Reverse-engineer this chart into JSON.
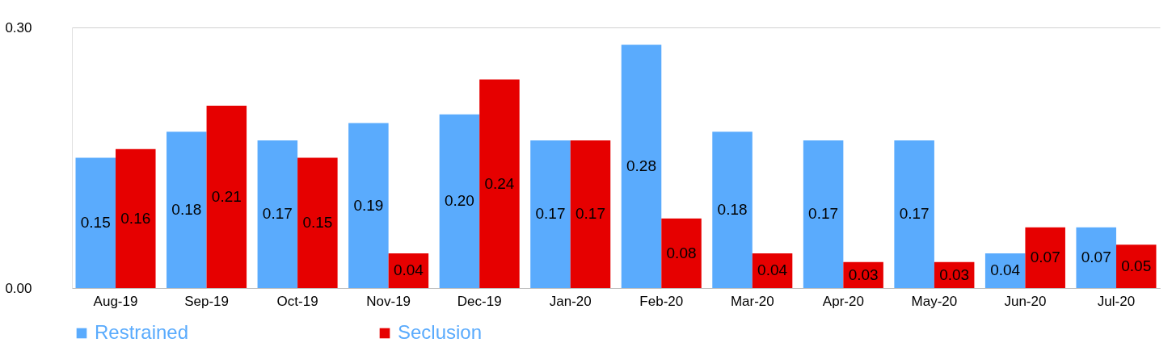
{
  "chart_data": {
    "type": "bar",
    "categories": [
      "Aug-19",
      "Sep-19",
      "Oct-19",
      "Nov-19",
      "Dec-19",
      "Jan-20",
      "Feb-20",
      "Mar-20",
      "Apr-20",
      "May-20",
      "Jun-20",
      "Jul-20"
    ],
    "series": [
      {
        "name": "Restrained",
        "color": "#5aabfd",
        "values": [
          0.15,
          0.18,
          0.17,
          0.19,
          0.2,
          0.17,
          0.28,
          0.18,
          0.17,
          0.17,
          0.04,
          0.07
        ],
        "value_labels": [
          "0.15",
          "0.18",
          "0.17",
          "0.19",
          "0.20",
          "0.17",
          "0.28",
          "0.18",
          "0.17",
          "0.17",
          "0.04",
          "0.07"
        ]
      },
      {
        "name": "Seclusion",
        "color": "#e60000",
        "values": [
          0.16,
          0.21,
          0.15,
          0.04,
          0.24,
          0.17,
          0.08,
          0.04,
          0.03,
          0.03,
          0.07,
          0.05
        ],
        "value_labels": [
          "0.16",
          "0.21",
          "0.15",
          "0.04",
          "0.24",
          "0.17",
          "0.08",
          "0.04",
          "0.03",
          "0.03",
          "0.07",
          "0.05"
        ]
      }
    ],
    "ylim": [
      0,
      0.3
    ],
    "yticks": [
      {
        "value": 0,
        "label": "0.00"
      },
      {
        "value": 0.3,
        "label": "0.30"
      }
    ],
    "grid": "y",
    "legend": "bottom"
  }
}
